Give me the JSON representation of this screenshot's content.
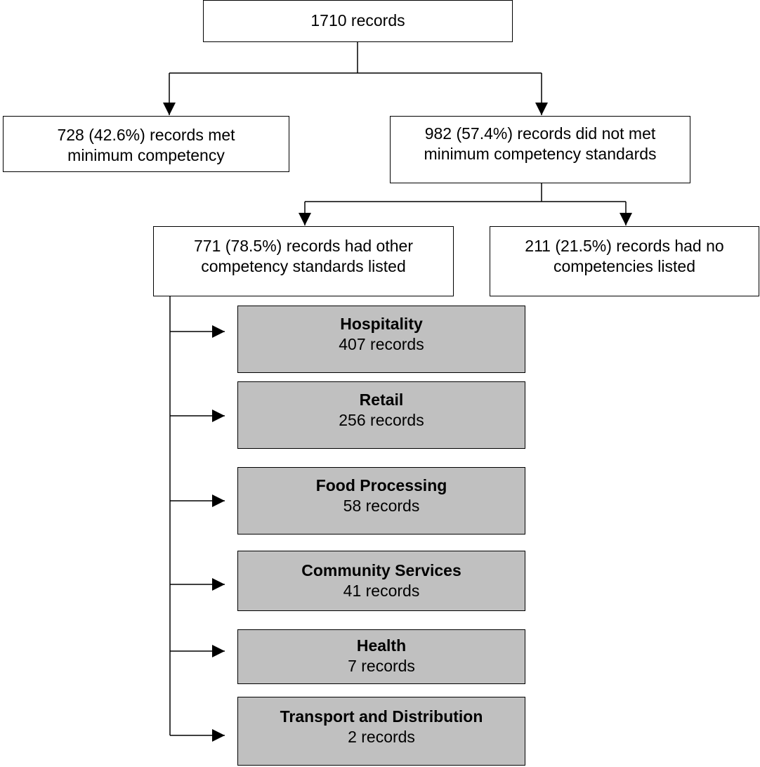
{
  "diagram": {
    "root": {
      "label": "1710 records"
    },
    "met": {
      "line1": "728 (42.6%) records met",
      "line2": "minimum competency"
    },
    "not_met": {
      "line1": "982 (57.4%) records did not met",
      "line2": "minimum competency standards"
    },
    "other_standards": {
      "line1": "771 (78.5%) records had other",
      "line2": "competency standards listed"
    },
    "no_competencies": {
      "line1": "211 (21.5%) records had no",
      "line2": "competencies listed"
    },
    "sectors": [
      {
        "name": "Hospitality",
        "count": "407 records"
      },
      {
        "name": "Retail",
        "count": "256 records"
      },
      {
        "name": "Food Processing",
        "count": "58 records"
      },
      {
        "name": "Community Services",
        "count": "41 records"
      },
      {
        "name": "Health",
        "count": "7 records"
      },
      {
        "name": "Transport and Distribution",
        "count": "2 records"
      }
    ]
  },
  "colors": {
    "sector_fill": "#c0c0c0",
    "box_fill": "#ffffff",
    "line": "#000000"
  }
}
